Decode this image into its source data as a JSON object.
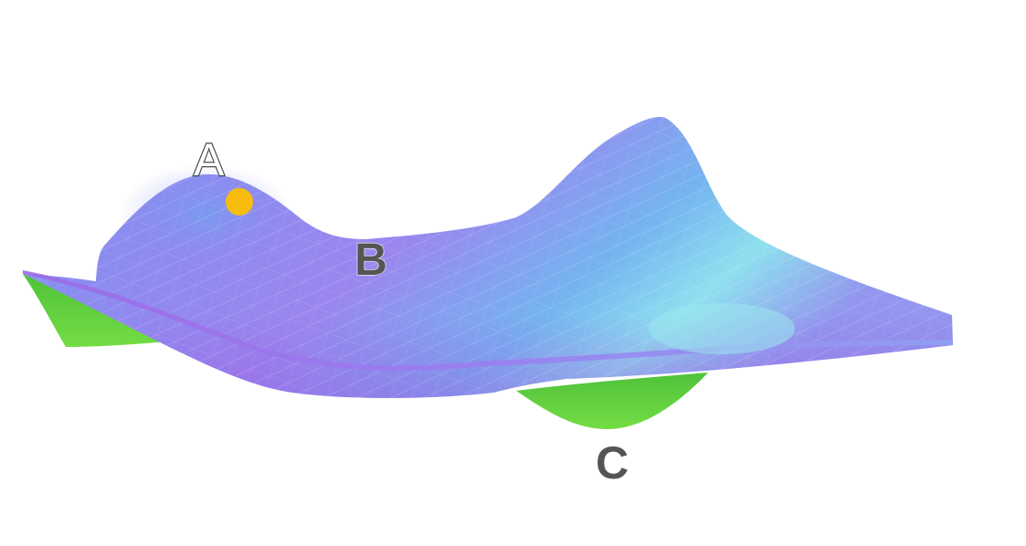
{
  "labels": {
    "a": "A",
    "b": "B",
    "c": "C"
  },
  "colors": {
    "surface_top": "#8a8cf0",
    "surface_cyan": "#7ad4ee",
    "surface_violet": "#a26ae6",
    "underside_green": "#5fcf3a",
    "marker": "#f8bc0f"
  }
}
